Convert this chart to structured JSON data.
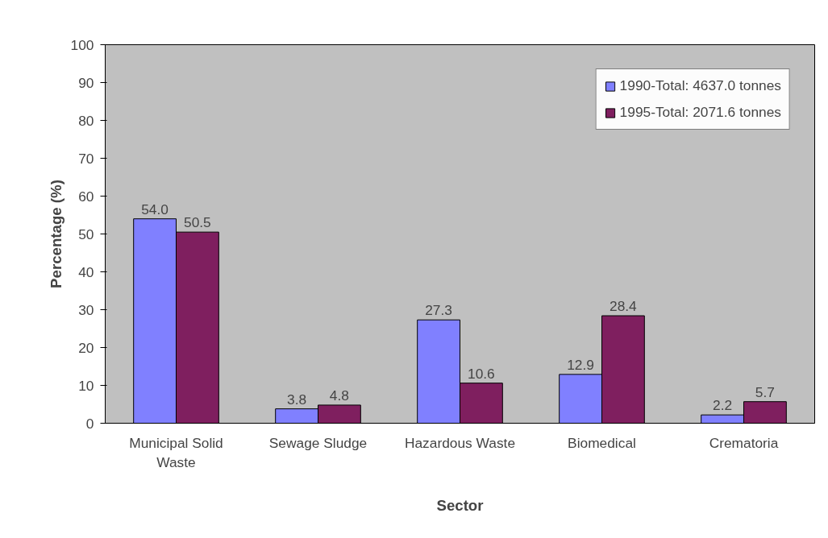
{
  "chart_data": {
    "type": "bar",
    "xlabel": "Sector",
    "ylabel": "Percentage (%)",
    "categories": [
      "Municipal Solid Waste",
      "Sewage Sludge",
      "Hazardous Waste",
      "Biomedical",
      "Crematoria"
    ],
    "series": [
      {
        "name": "1990-Total: 4637.0 tonnes",
        "color": "#8080ff",
        "values": [
          54.0,
          3.8,
          27.3,
          12.9,
          2.2
        ],
        "value_labels": [
          "54.0",
          "3.8",
          "27.3",
          "12.9",
          "2.2"
        ]
      },
      {
        "name": "1995-Total: 2071.6 tonnes",
        "color": "#7f1f5f",
        "values": [
          50.5,
          4.8,
          10.6,
          28.4,
          5.7
        ],
        "value_labels": [
          "50.5",
          "4.8",
          "10.6",
          "28.4",
          "5.7"
        ]
      }
    ],
    "ylim": [
      0,
      100
    ],
    "yticks": [
      0,
      10,
      20,
      30,
      40,
      50,
      60,
      70,
      80,
      90,
      100
    ],
    "legend": "top right",
    "grid": false
  }
}
